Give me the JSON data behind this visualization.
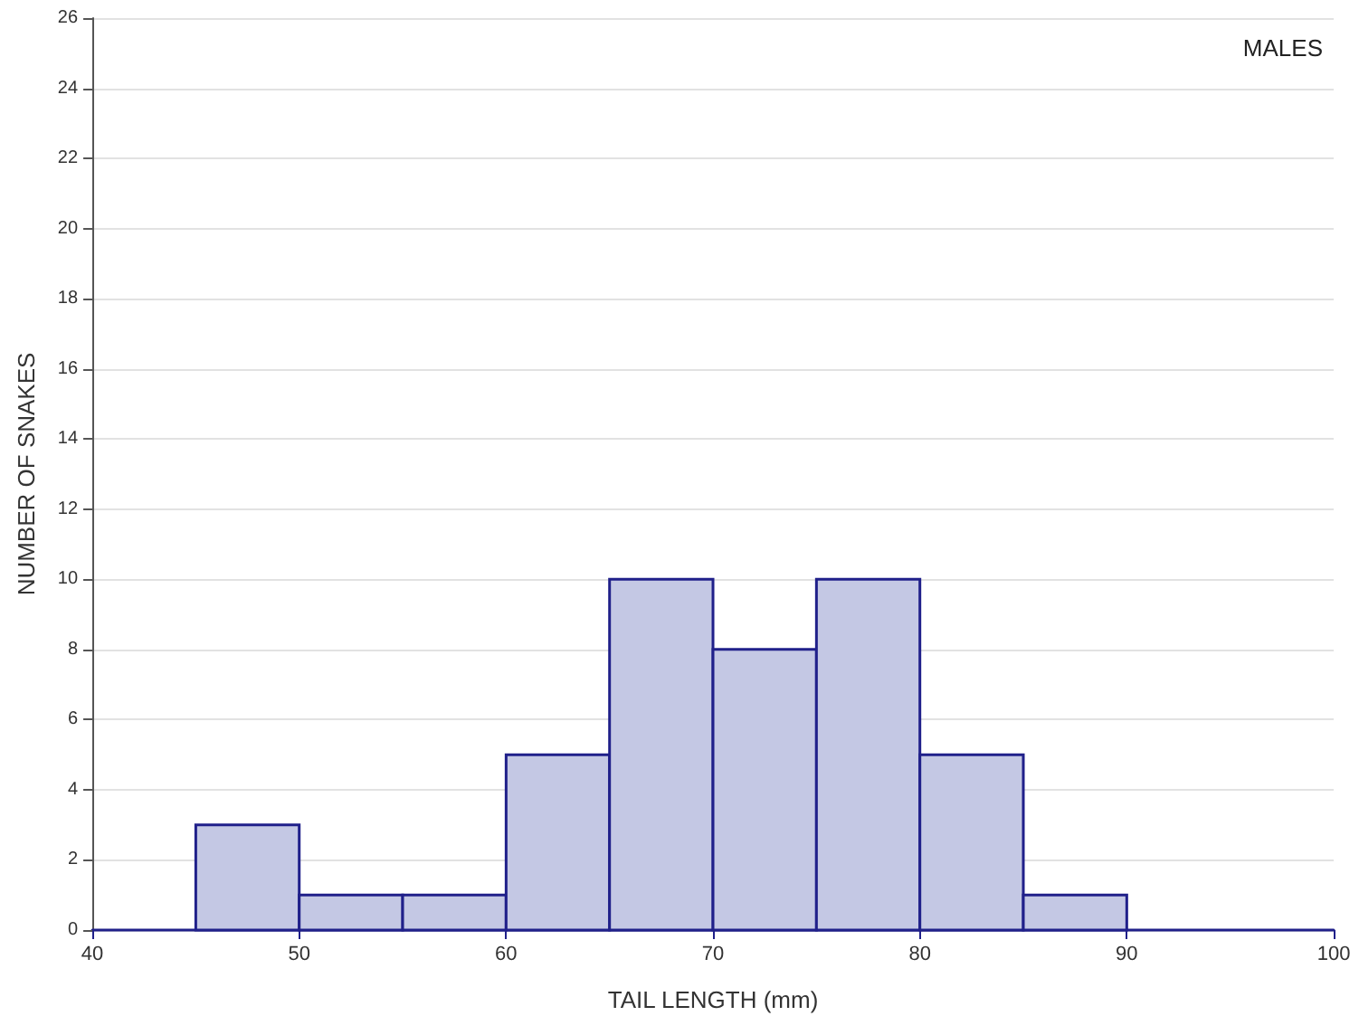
{
  "chart_data": {
    "type": "histogram",
    "xlabel": "TAIL LENGTH (mm)",
    "ylabel": "NUMBER OF SNAKES",
    "annotations": [
      "MALES"
    ],
    "bins": [
      45,
      50,
      55,
      60,
      65,
      70,
      75,
      80,
      85,
      90
    ],
    "values": [
      3,
      1,
      1,
      5,
      10,
      8,
      10,
      5,
      1
    ],
    "color": "#c4c8e4",
    "xlim": [
      40,
      100
    ],
    "xticks": [
      40,
      50,
      60,
      70,
      80,
      90,
      100
    ],
    "ylim": [
      0,
      26
    ],
    "yticks": [
      0,
      2,
      4,
      6,
      8,
      10,
      12,
      14,
      16,
      18,
      20,
      22,
      24,
      26
    ],
    "grid": "y"
  }
}
